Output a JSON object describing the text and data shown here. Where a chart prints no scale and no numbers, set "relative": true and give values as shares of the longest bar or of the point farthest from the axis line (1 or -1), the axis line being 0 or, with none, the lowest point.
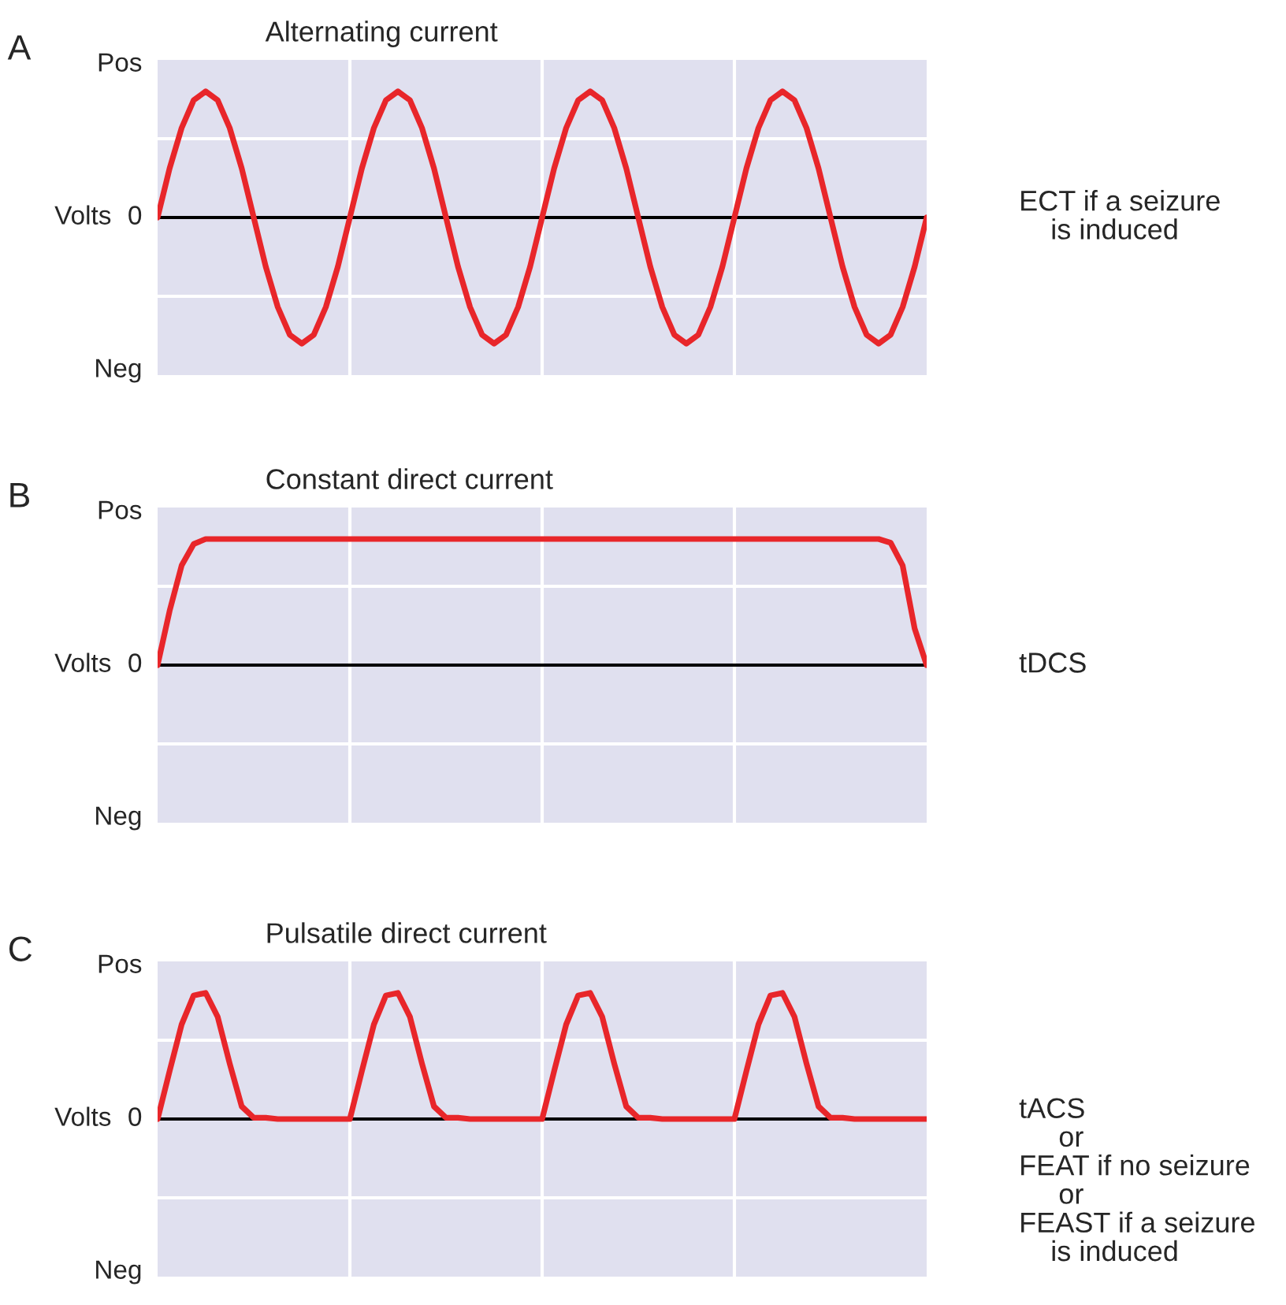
{
  "chart_data": [
    {
      "type": "line",
      "relative": true,
      "title": "Alternating current",
      "ylabel": "Volts",
      "annotations": [
        "A",
        "Pos",
        "0",
        "Neg",
        "ECT if a seizure\n    is induced"
      ],
      "categories": [
        null,
        null,
        null,
        null,
        null,
        null,
        null,
        null,
        null,
        null,
        null,
        null,
        null,
        null,
        null,
        null,
        null,
        null,
        null,
        null,
        null,
        null,
        null,
        null,
        null,
        null,
        null,
        null,
        null,
        null,
        null,
        null,
        null,
        null,
        null,
        null,
        null,
        null,
        null,
        null,
        null,
        null,
        null,
        null,
        null,
        null,
        null,
        null,
        null,
        null,
        null,
        null,
        null,
        null,
        null,
        null,
        null,
        null,
        null,
        null,
        null,
        null,
        null,
        null,
        null
      ],
      "series": [
        {
          "color": "#e8262a",
          "values": [
            0,
            0.39,
            0.71,
            0.93,
            1,
            0.93,
            0.71,
            0.39,
            0,
            -0.39,
            -0.71,
            -0.93,
            -1,
            -0.93,
            -0.71,
            -0.39,
            0,
            0.39,
            0.71,
            0.93,
            1,
            0.93,
            0.71,
            0.39,
            0,
            -0.39,
            -0.71,
            -0.93,
            -1,
            -0.93,
            -0.71,
            -0.39,
            0,
            0.39,
            0.71,
            0.93,
            1,
            0.93,
            0.71,
            0.39,
            0,
            -0.39,
            -0.71,
            -0.93,
            -1,
            -0.93,
            -0.71,
            -0.39,
            0,
            0.39,
            0.71,
            0.93,
            1,
            0.93,
            0.71,
            0.39,
            0,
            -0.39,
            -0.71,
            -0.93,
            -1,
            -0.93,
            -0.71,
            -0.39,
            0
          ]
        }
      ],
      "ref_lines": [
        {
          "axis": "y",
          "value": 0,
          "color": "#000000"
        }
      ],
      "grid": true
    },
    {
      "type": "line",
      "relative": true,
      "title": "Constant direct current",
      "ylabel": "Volts",
      "annotations": [
        "B",
        "Pos",
        "0",
        "Neg",
        "tDCS"
      ],
      "categories": [
        null,
        null,
        null,
        null,
        null,
        null,
        null,
        null,
        null,
        null,
        null,
        null,
        null,
        null,
        null,
        null,
        null,
        null,
        null,
        null,
        null,
        null,
        null,
        null,
        null,
        null,
        null,
        null,
        null,
        null,
        null,
        null,
        null,
        null,
        null,
        null,
        null,
        null,
        null,
        null,
        null,
        null,
        null,
        null,
        null,
        null,
        null,
        null,
        null,
        null,
        null,
        null,
        null,
        null,
        null,
        null,
        null,
        null,
        null,
        null,
        null,
        null,
        null,
        null,
        null
      ],
      "series": [
        {
          "color": "#e8262a",
          "values": [
            0,
            0.43,
            0.79,
            0.96,
            1,
            1,
            1,
            1,
            1,
            1,
            1,
            1,
            1,
            1,
            1,
            1,
            1,
            1,
            1,
            1,
            1,
            1,
            1,
            1,
            1,
            1,
            1,
            1,
            1,
            1,
            1,
            1,
            1,
            1,
            1,
            1,
            1,
            1,
            1,
            1,
            1,
            1,
            1,
            1,
            1,
            1,
            1,
            1,
            1,
            1,
            1,
            1,
            1,
            1,
            1,
            1,
            1,
            1,
            1,
            1,
            1,
            0.97,
            0.79,
            0.29,
            0
          ]
        }
      ],
      "ref_lines": [
        {
          "axis": "y",
          "value": 0,
          "color": "#000000"
        }
      ],
      "grid": true
    },
    {
      "type": "line",
      "relative": true,
      "title": "Pulsatile direct current",
      "ylabel": "Volts",
      "annotations": [
        "C",
        "Pos",
        "0",
        "Neg",
        "tACS\n     or\nFEAT if no seizure\n     or\nFEAST if a seizure\n    is induced"
      ],
      "categories": [
        null,
        null,
        null,
        null,
        null,
        null,
        null,
        null,
        null,
        null,
        null,
        null,
        null,
        null,
        null,
        null,
        null,
        null,
        null,
        null,
        null,
        null,
        null,
        null,
        null,
        null,
        null,
        null,
        null,
        null,
        null,
        null,
        null,
        null,
        null,
        null,
        null,
        null,
        null,
        null,
        null,
        null,
        null,
        null,
        null,
        null,
        null,
        null,
        null,
        null,
        null,
        null,
        null,
        null,
        null,
        null,
        null,
        null,
        null,
        null,
        null,
        null,
        null,
        null,
        null
      ],
      "series": [
        {
          "color": "#e8262a",
          "values": [
            0,
            0.38,
            0.75,
            0.98,
            1,
            0.81,
            0.44,
            0.1,
            0.01,
            0.01,
            0,
            0,
            0,
            0,
            0,
            0,
            0,
            0.38,
            0.75,
            0.98,
            1,
            0.81,
            0.44,
            0.1,
            0.01,
            0.01,
            0,
            0,
            0,
            0,
            0,
            0,
            0,
            0.38,
            0.75,
            0.98,
            1,
            0.81,
            0.44,
            0.1,
            0.01,
            0.01,
            0,
            0,
            0,
            0,
            0,
            0,
            0,
            0.38,
            0.75,
            0.98,
            1,
            0.81,
            0.44,
            0.1,
            0.01,
            0.01,
            0,
            0,
            0,
            0,
            0,
            0,
            0
          ]
        }
      ],
      "ref_lines": [
        {
          "axis": "y",
          "value": 0,
          "color": "#000000"
        }
      ],
      "grid": true
    }
  ]
}
